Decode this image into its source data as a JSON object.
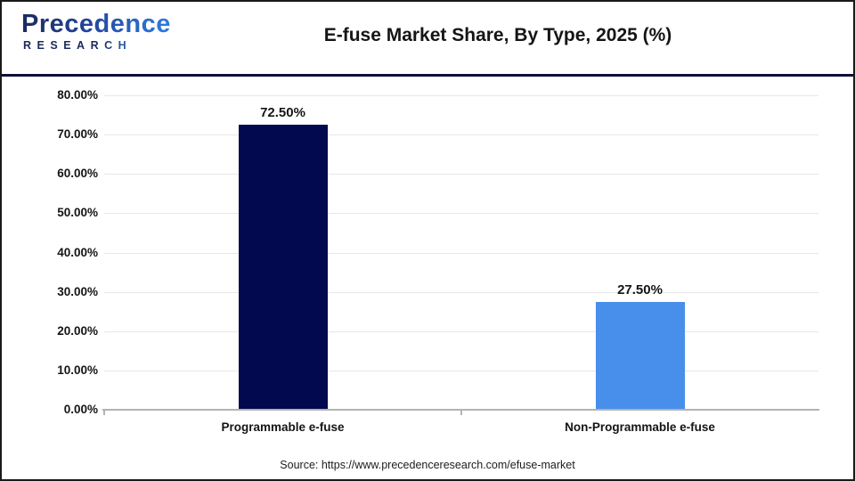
{
  "logo": {
    "name": "Precedence",
    "subtitle": "RESEARCH"
  },
  "header": {
    "title": "E-fuse Market Share, By Type, 2025 (%)"
  },
  "source": "Source: https://www.precedenceresearch.com/efuse-market",
  "colors": {
    "divider": "#0d1138",
    "gridline": "#e7e7e7",
    "axis": "#b3b3b3",
    "logo_navy": "#1b2b5e",
    "logo_blue": "#2e7de0",
    "text": "#151515"
  },
  "chart_data": {
    "type": "bar",
    "title": "E-fuse Market Share, By Type, 2025 (%)",
    "categories": [
      "Programmable e-fuse",
      "Non-Programmable e-fuse"
    ],
    "values": [
      72.5,
      27.5
    ],
    "value_labels": [
      "72.50%",
      "27.50%"
    ],
    "bar_colors": [
      "#02094e",
      "#478fea"
    ],
    "ytick_labels": [
      "80.00%",
      "70.00%",
      "60.00%",
      "50.00%",
      "40.00%",
      "30.00%",
      "20.00%",
      "10.00%",
      "0.00%"
    ],
    "ylim": [
      0,
      80
    ],
    "grid": true,
    "legend": "none",
    "xlabel": "",
    "ylabel": ""
  }
}
